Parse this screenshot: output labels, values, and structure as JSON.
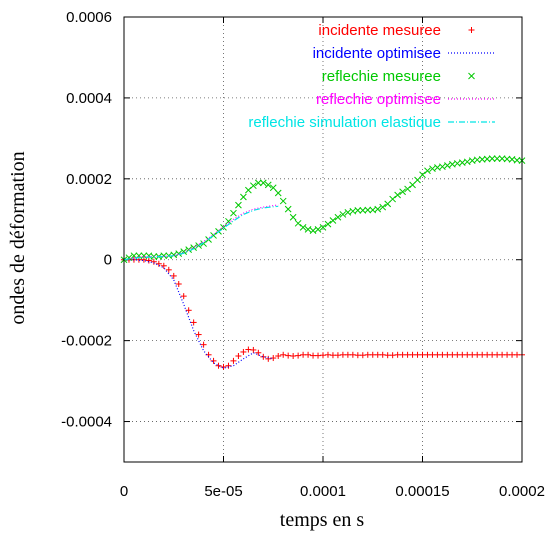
{
  "chart_data": {
    "type": "line",
    "title": "",
    "xlabel": "temps en s",
    "ylabel": "ondes de déformation",
    "xlim": [
      0,
      0.0002
    ],
    "ylim": [
      -0.0005,
      0.0006
    ],
    "x_ticks": [
      {
        "value": 0,
        "label": "0"
      },
      {
        "value": 5e-05,
        "label": "5e-05"
      },
      {
        "value": 0.0001,
        "label": "0.0001"
      },
      {
        "value": 0.00015,
        "label": "0.00015"
      },
      {
        "value": 0.0002,
        "label": "0.0002"
      }
    ],
    "y_ticks": [
      {
        "value": 0.0006,
        "label": "0.0006"
      },
      {
        "value": 0.0004,
        "label": "0.0004"
      },
      {
        "value": 0.0002,
        "label": "0.0002"
      },
      {
        "value": 0,
        "label": "0"
      },
      {
        "value": -0.0002,
        "label": "-0.0002"
      },
      {
        "value": -0.0004,
        "label": "-0.0004"
      }
    ],
    "grid": true,
    "legend_position": "top-right",
    "series": [
      {
        "name": "incidente mesuree",
        "style": "points",
        "marker": "plus",
        "color": "#ff0000",
        "x": [
          0,
          2.5e-06,
          5e-06,
          7.5e-06,
          1e-05,
          1.25e-05,
          1.5e-05,
          1.75e-05,
          2e-05,
          2.25e-05,
          2.5e-05,
          2.75e-05,
          3e-05,
          3.25e-05,
          3.5e-05,
          3.75e-05,
          4e-05,
          4.25e-05,
          4.5e-05,
          4.75e-05,
          5e-05,
          5.25e-05,
          5.5e-05,
          5.75e-05,
          6e-05,
          6.25e-05,
          6.5e-05,
          6.75e-05,
          7e-05,
          7.25e-05,
          7.5e-05,
          7.75e-05,
          8e-05,
          8.25e-05,
          8.5e-05,
          8.75e-05,
          9e-05,
          9.25e-05,
          9.5e-05,
          9.75e-05,
          0.0001,
          0.0001025,
          0.000105,
          0.0001075,
          0.00011,
          0.0001125,
          0.000115,
          0.0001175,
          0.00012,
          0.0001225,
          0.000125,
          0.0001275,
          0.00013,
          0.0001325,
          0.000135,
          0.0001375,
          0.00014,
          0.0001425,
          0.000145,
          0.0001475,
          0.00015,
          0.0001525,
          0.000155,
          0.0001575,
          0.00016,
          0.0001625,
          0.000165,
          0.0001675,
          0.00017,
          0.0001725,
          0.000175,
          0.0001775,
          0.00018,
          0.0001825,
          0.000185,
          0.0001875,
          0.00019,
          0.0001925,
          0.000195,
          0.0001975,
          0.0002
        ],
        "y": [
          0,
          0,
          0,
          0,
          0,
          -2e-06,
          -5e-06,
          -1e-05,
          -1.5e-05,
          -2.5e-05,
          -4e-05,
          -6e-05,
          -9e-05,
          -0.000125,
          -0.000155,
          -0.000185,
          -0.00021,
          -0.000235,
          -0.00025,
          -0.000262,
          -0.000265,
          -0.000262,
          -0.00025,
          -0.000238,
          -0.000228,
          -0.000222,
          -0.000223,
          -0.00023,
          -0.00024,
          -0.000245,
          -0.000243,
          -0.000238,
          -0.000235,
          -0.000237,
          -0.000238,
          -0.000237,
          -0.000235,
          -0.000235,
          -0.000237,
          -0.000237,
          -0.000236,
          -0.000235,
          -0.000236,
          -0.000236,
          -0.000235,
          -0.000235,
          -0.000235,
          -0.000236,
          -0.000236,
          -0.000235,
          -0.000235,
          -0.000235,
          -0.000235,
          -0.000236,
          -0.000236,
          -0.000235,
          -0.000235,
          -0.000235,
          -0.000235,
          -0.000235,
          -0.000235,
          -0.000235,
          -0.000235,
          -0.000235,
          -0.000235,
          -0.000235,
          -0.000235,
          -0.000235,
          -0.000235,
          -0.000235,
          -0.000235,
          -0.000235,
          -0.000235,
          -0.000235,
          -0.000235,
          -0.000235,
          -0.000235,
          -0.000235,
          -0.000235,
          -0.000235,
          -0.000235
        ]
      },
      {
        "name": "incidente optimisee",
        "style": "dotted",
        "color": "#0000ff",
        "x": [
          0,
          5e-06,
          1e-05,
          1.5e-05,
          2e-05,
          2.5e-05,
          3e-05,
          3.5e-05,
          4e-05,
          4.5e-05,
          5e-05,
          5.5e-05,
          6e-05,
          6.5e-05,
          7e-05,
          7.5e-05
        ],
        "y": [
          0,
          0,
          -2e-06,
          -8e-06,
          -2e-05,
          -5e-05,
          -0.00011,
          -0.000175,
          -0.000225,
          -0.000255,
          -0.000268,
          -0.000262,
          -0.000245,
          -0.00023,
          -0.00024,
          -0.000245
        ]
      },
      {
        "name": "reflechie mesuree",
        "style": "points",
        "marker": "cross",
        "color": "#00c800",
        "x": [
          0,
          2.5e-06,
          5e-06,
          7.5e-06,
          1e-05,
          1.25e-05,
          1.5e-05,
          1.75e-05,
          2e-05,
          2.25e-05,
          2.5e-05,
          2.75e-05,
          3e-05,
          3.25e-05,
          3.5e-05,
          3.75e-05,
          4e-05,
          4.25e-05,
          4.5e-05,
          4.75e-05,
          5e-05,
          5.25e-05,
          5.5e-05,
          5.75e-05,
          6e-05,
          6.25e-05,
          6.5e-05,
          6.75e-05,
          7e-05,
          7.25e-05,
          7.5e-05,
          7.75e-05,
          8e-05,
          8.25e-05,
          8.5e-05,
          8.75e-05,
          9e-05,
          9.25e-05,
          9.5e-05,
          9.75e-05,
          0.0001,
          0.0001025,
          0.000105,
          0.0001075,
          0.00011,
          0.0001125,
          0.000115,
          0.0001175,
          0.00012,
          0.0001225,
          0.000125,
          0.0001275,
          0.00013,
          0.0001325,
          0.000135,
          0.0001375,
          0.00014,
          0.0001425,
          0.000145,
          0.0001475,
          0.00015,
          0.0001525,
          0.000155,
          0.0001575,
          0.00016,
          0.0001625,
          0.000165,
          0.0001675,
          0.00017,
          0.0001725,
          0.000175,
          0.0001775,
          0.00018,
          0.0001825,
          0.000185,
          0.0001875,
          0.00019,
          0.0001925,
          0.000195,
          0.0001975,
          0.0002
        ],
        "y": [
          0,
          5e-06,
          1e-05,
          1e-05,
          1e-05,
          1e-05,
          8e-06,
          8e-06,
          1e-05,
          1e-05,
          1.2e-05,
          1.5e-05,
          2e-05,
          2.5e-05,
          3e-05,
          3.5e-05,
          4e-05,
          5e-05,
          6e-05,
          7e-05,
          8e-05,
          9.5e-05,
          0.000115,
          0.000135,
          0.000155,
          0.000172,
          0.000183,
          0.00019,
          0.00019,
          0.000185,
          0.000178,
          0.000165,
          0.000145,
          0.000125,
          0.000105,
          9e-05,
          8e-05,
          7.5e-05,
          7.2e-05,
          7.5e-05,
          8e-05,
          8.8e-05,
          9.7e-05,
          0.000105,
          0.000112,
          0.000117,
          0.00012,
          0.000122,
          0.000122,
          0.000123,
          0.000123,
          0.000125,
          0.00013,
          0.000138,
          0.00015,
          0.00016,
          0.000168,
          0.000175,
          0.000185,
          0.000197,
          0.00021,
          0.00022,
          0.000225,
          0.000228,
          0.00023,
          0.000233,
          0.000236,
          0.000238,
          0.00024,
          0.000242,
          0.000245,
          0.000247,
          0.000248,
          0.000249,
          0.00025,
          0.00025,
          0.00025,
          0.000249,
          0.000248,
          0.000246,
          0.000245
        ]
      },
      {
        "name": "reflechie optimisee",
        "style": "dotted",
        "color": "#ff00ff",
        "x": [
          0,
          5e-06,
          1e-05,
          1.5e-05,
          2e-05,
          2.5e-05,
          3e-05,
          3.5e-05,
          4e-05,
          4.5e-05,
          5e-05,
          5.5e-05,
          6e-05,
          6.5e-05,
          7e-05,
          7.5e-05,
          7.75e-05
        ],
        "y": [
          0,
          5e-06,
          8e-06,
          8e-06,
          8e-06,
          1e-05,
          1.8e-05,
          3e-05,
          4.5e-05,
          6.2e-05,
          8.2e-05,
          0.0001,
          0.000115,
          0.000125,
          0.00013,
          0.000134,
          0.000135
        ]
      },
      {
        "name": "reflechie simulation elastique",
        "style": "dashdot",
        "color": "#00e5e5",
        "x": [
          0,
          5e-06,
          1e-05,
          1.5e-05,
          2e-05,
          2.5e-05,
          3e-05,
          3.5e-05,
          4e-05,
          4.5e-05,
          5e-05,
          5.5e-05,
          6e-05,
          6.5e-05,
          7e-05,
          7.5e-05,
          7.75e-05
        ],
        "y": [
          0,
          4e-06,
          6e-06,
          7e-06,
          8e-06,
          1e-05,
          1.6e-05,
          2.7e-05,
          4.2e-05,
          6e-05,
          7.8e-05,
          9.6e-05,
          0.000112,
          0.000122,
          0.000128,
          0.000131,
          0.000132
        ]
      }
    ]
  }
}
